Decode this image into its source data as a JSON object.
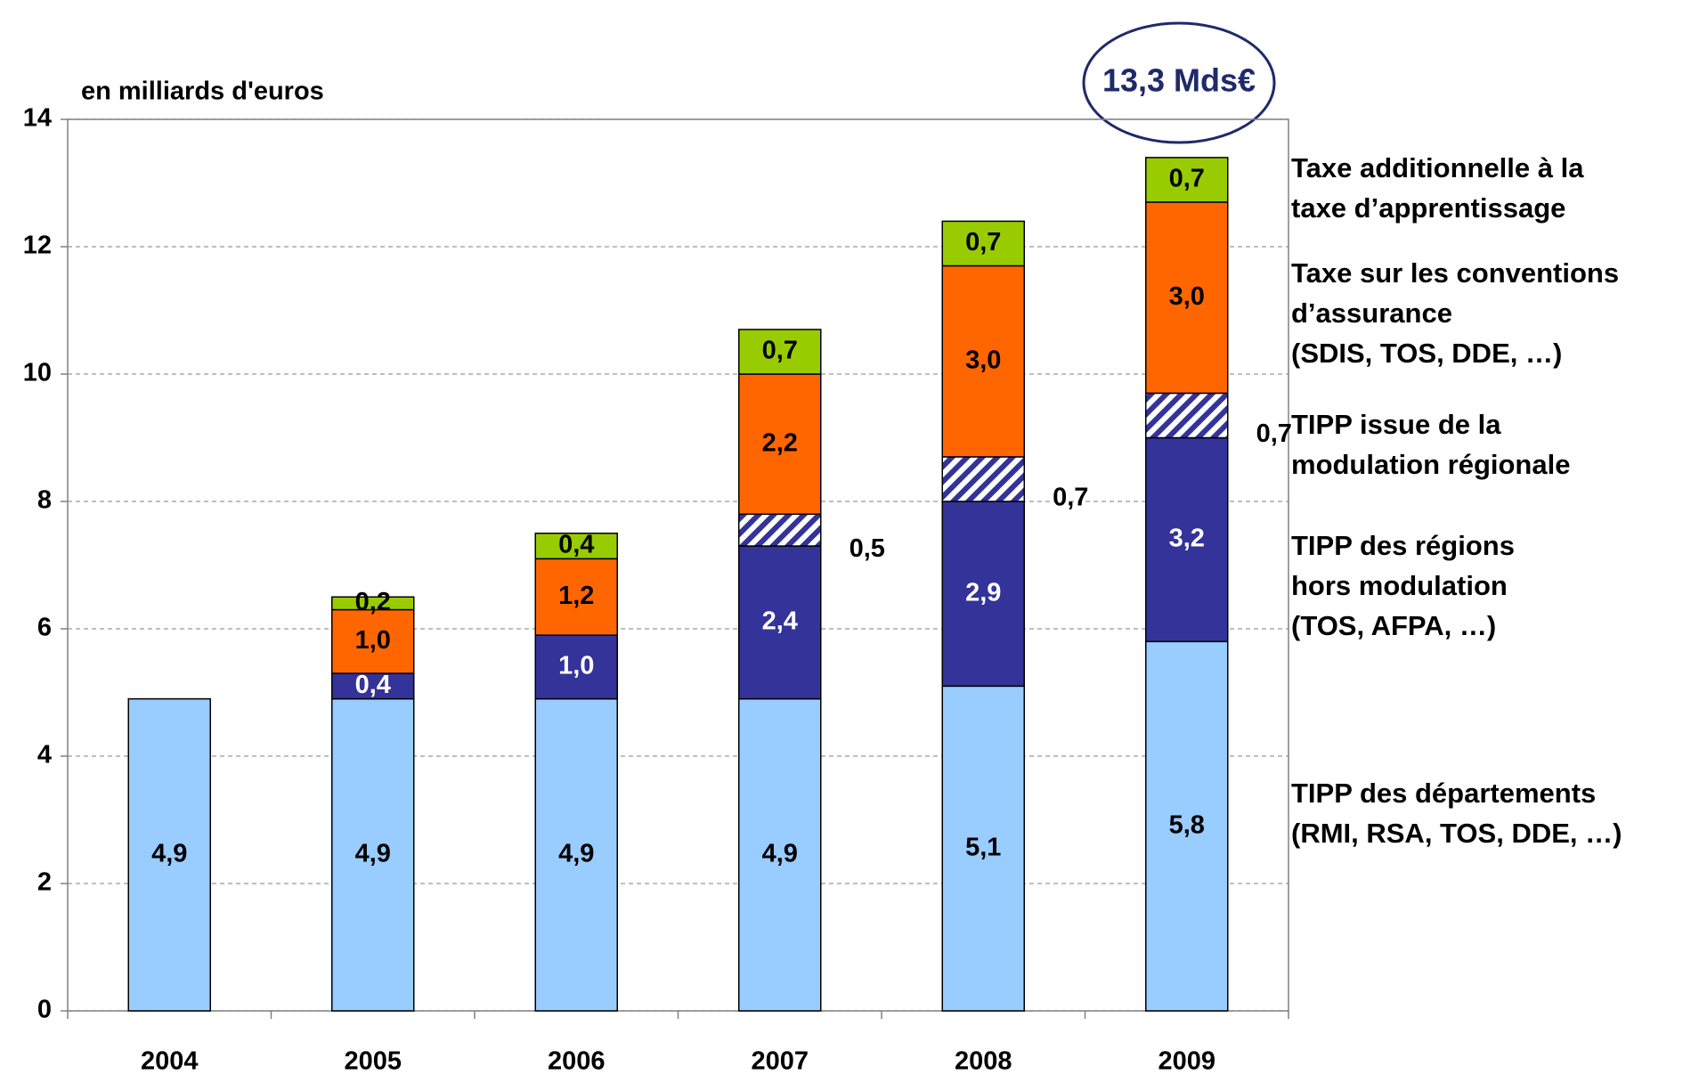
{
  "chart_data": {
    "type": "stacked_bar",
    "ylabel": "en milliards d'euros",
    "annotation": "13,3 Mds€",
    "categories": [
      "2004",
      "2005",
      "2006",
      "2007",
      "2008",
      "2009"
    ],
    "ylim": [
      0,
      14
    ],
    "yticks": [
      0,
      2,
      4,
      6,
      8,
      10,
      12,
      14
    ],
    "grid": true,
    "series": [
      {
        "name": "TIPP des départements\n(RMI, RSA, TOS, DDE, …)",
        "color": "#99ccff",
        "label_color": "#000000",
        "values": [
          4.9,
          4.9,
          4.9,
          4.9,
          5.1,
          5.8
        ],
        "value_labels": [
          "4,9",
          "4,9",
          "4,9",
          "4,9",
          "5,1",
          "5,8"
        ]
      },
      {
        "name": "TIPP des régions\nhors modulation\n(TOS, AFPA, …)",
        "color": "#333399",
        "label_color": "#ffffff",
        "values": [
          null,
          0.4,
          1.0,
          2.4,
          2.9,
          3.2
        ],
        "value_labels": [
          null,
          "0,4",
          "1,0",
          "2,4",
          "2,9",
          "3,2"
        ]
      },
      {
        "name": "TIPP issue de la\nmodulation régionale",
        "color": "#333399",
        "hatch": true,
        "label_color": "#000000",
        "values": [
          null,
          null,
          null,
          0.5,
          0.7,
          0.7
        ],
        "value_labels": [
          null,
          null,
          null,
          "0,5",
          "0,7",
          "0,7"
        ]
      },
      {
        "name": "Taxe sur les conventions\nd’assurance\n(SDIS, TOS, DDE, …)",
        "color": "#ff6600",
        "label_color": "#000000",
        "values": [
          null,
          1.0,
          1.2,
          2.2,
          3.0,
          3.0
        ],
        "value_labels": [
          null,
          "1,0",
          "1,2",
          "2,2",
          "3,0",
          "3,0"
        ]
      },
      {
        "name": "Taxe additionnelle à la\ntaxe d’apprentissage",
        "color": "#99cc00",
        "label_color": "#000000",
        "values": [
          null,
          0.2,
          0.4,
          0.7,
          0.7,
          0.7
        ],
        "value_labels": [
          null,
          "0,2",
          "0,4",
          "0,7",
          "0,7",
          "0,7"
        ]
      }
    ]
  }
}
